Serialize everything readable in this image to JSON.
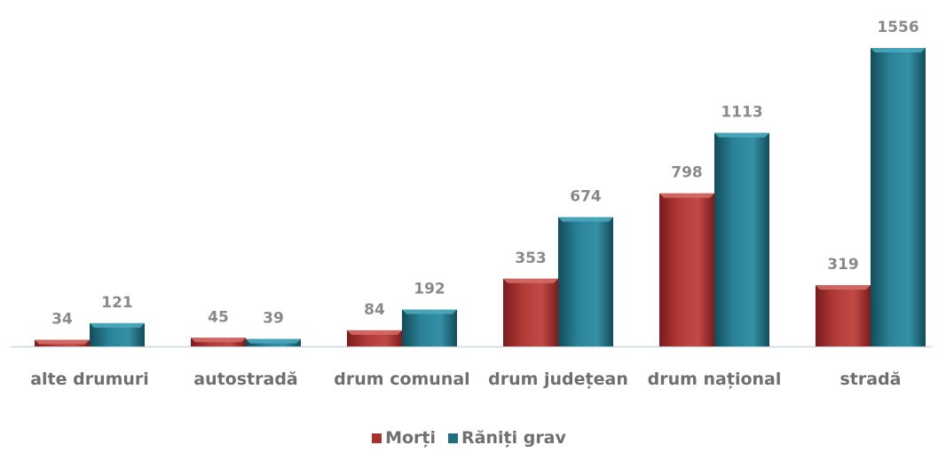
{
  "chart_data": {
    "type": "bar",
    "categories": [
      "alte drumuri",
      "autostradă",
      "drum comunal",
      "drum județean",
      "drum național",
      "stradă"
    ],
    "series": [
      {
        "name": "Morți",
        "values": [
          34,
          45,
          84,
          353,
          798,
          319
        ],
        "color": "#a8302f"
      },
      {
        "name": "Răniți grav",
        "values": [
          121,
          39,
          192,
          674,
          1113,
          1556
        ],
        "color": "#1f6f82"
      }
    ],
    "title": "",
    "xlabel": "",
    "ylabel": "",
    "ylim": [
      0,
      1556
    ],
    "grid": false,
    "legend_position": "bottom"
  }
}
